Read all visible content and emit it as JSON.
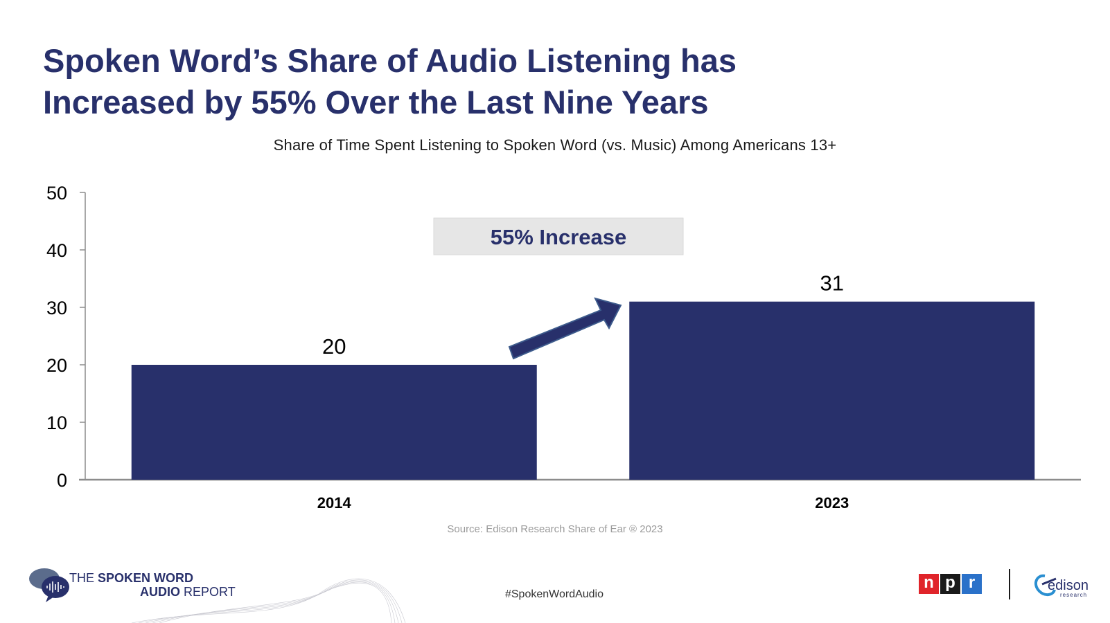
{
  "title_line1": "Spoken Word’s Share of Audio Listening has",
  "title_line2": "Increased by 55% Over the Last Nine Years",
  "subtitle": "Share of Time Spent Listening to Spoken Word (vs. Music) Among Americans 13+",
  "callout": "55% Increase",
  "source": "Source: Edison Research Share of Ear ® 2023",
  "hashtag": "#SpokenWordAudio",
  "report_logo": {
    "the": "THE",
    "spoken_word": "SPOKEN WORD",
    "audio": "AUDIO",
    "report": "REPORT",
    "icon": "chat-bubble-waveform-icon"
  },
  "npr_logo": [
    "n",
    "p",
    "r"
  ],
  "edison_logo": {
    "name": "edison",
    "sub": "research"
  },
  "colors": {
    "bar": "#28306b",
    "title": "#28306b",
    "callout_bg": "#e6e6e6",
    "arrow": "#28306b"
  },
  "chart_data": {
    "type": "bar",
    "categories": [
      "2014",
      "2023"
    ],
    "values": [
      20,
      31
    ],
    "data_labels": [
      "20",
      "31"
    ],
    "ylim": [
      0,
      50
    ],
    "yticks": [
      0,
      10,
      20,
      30,
      40,
      50
    ],
    "xlabel": "",
    "ylabel": "",
    "grid": false,
    "legend": "none"
  }
}
